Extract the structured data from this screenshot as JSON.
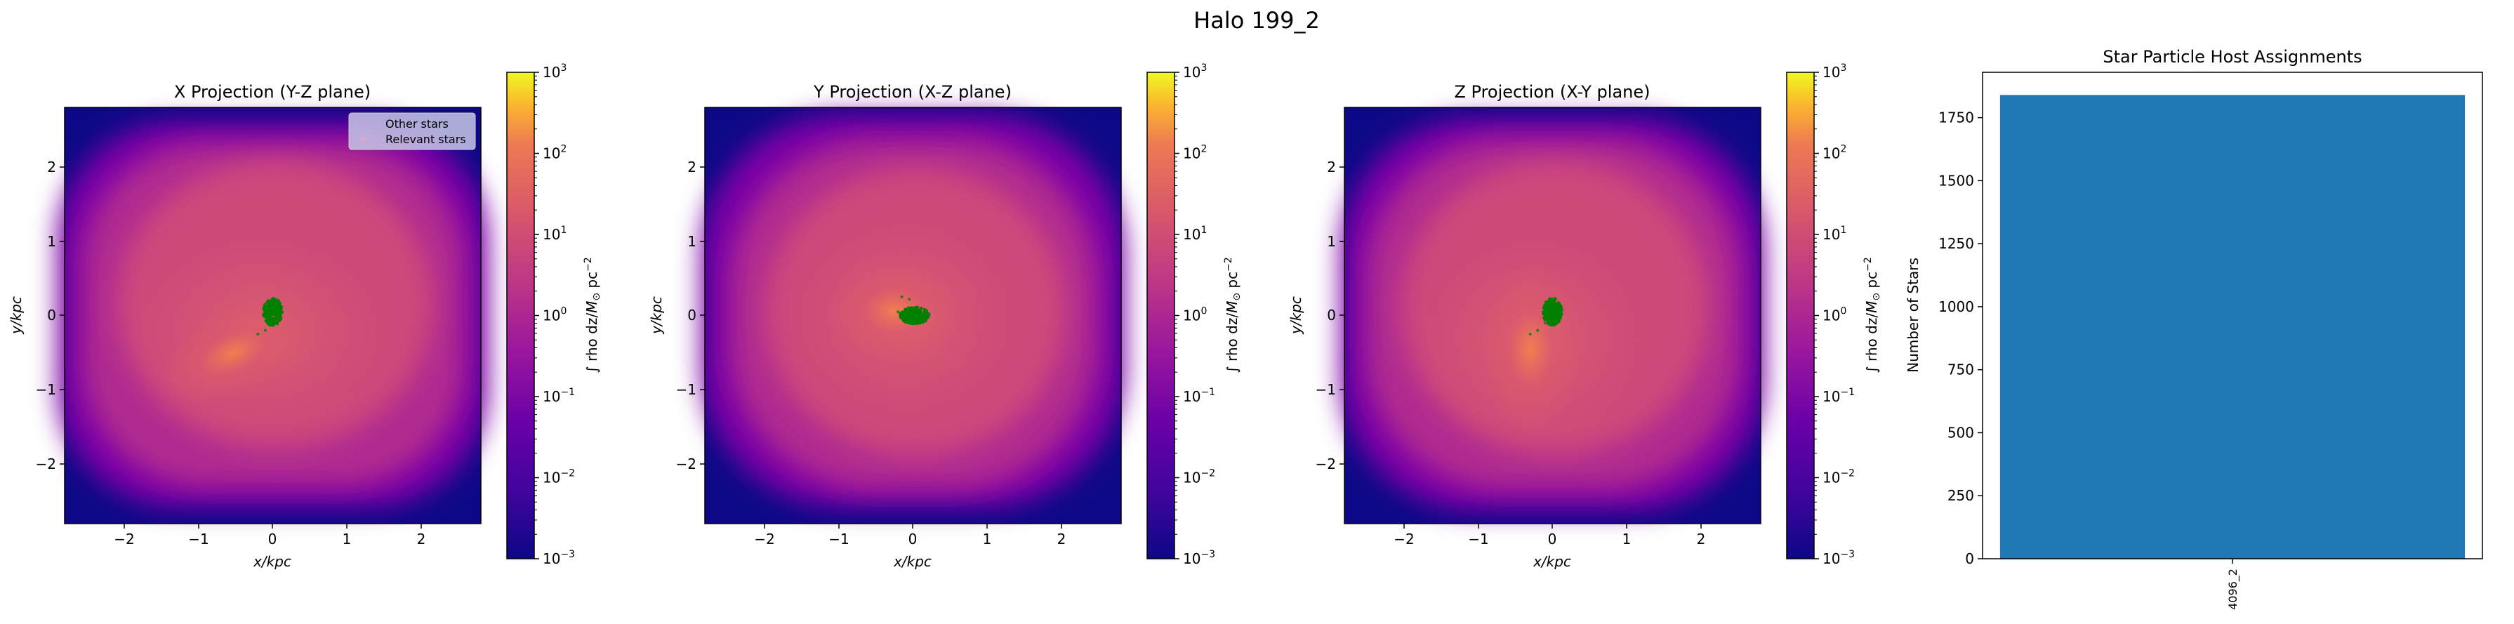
{
  "figure": {
    "title": "Halo 199_2"
  },
  "colors": {
    "stars_green": "#008000",
    "other_stars_pink": "#ff9f9f",
    "bar_blue": "#1f77b4",
    "legend_bg": "#c8c8e6",
    "colormap": "plasma"
  },
  "projections": [
    {
      "title": "X Projection (Y-Z plane)",
      "xlabel": "x/kpc",
      "ylabel": "y/kpc",
      "xticks": [
        "−2",
        "−1",
        "0",
        "1",
        "2"
      ],
      "yticks": [
        "2",
        "1",
        "0",
        "−1",
        "−2"
      ],
      "show_legend": true
    },
    {
      "title": "Y Projection (X-Z plane)",
      "xlabel": "x/kpc",
      "ylabel": "y/kpc",
      "xticks": [
        "−2",
        "−1",
        "0",
        "1",
        "2"
      ],
      "yticks": [
        "2",
        "1",
        "0",
        "−1",
        "−2"
      ],
      "show_legend": false
    },
    {
      "title": "Z Projection (X-Y plane)",
      "xlabel": "x/kpc",
      "ylabel": "y/kpc",
      "xticks": [
        "−2",
        "−1",
        "0",
        "1",
        "2"
      ],
      "yticks": [
        "2",
        "1",
        "0",
        "−1",
        "−2"
      ],
      "show_legend": false
    }
  ],
  "legend": {
    "other": "Other stars",
    "relevant": "Relevant stars"
  },
  "colorbar": {
    "label_prefix": "∫ rho dz/",
    "label_unit": "M",
    "label_sub": "⊙",
    "label_suffix": " pc",
    "label_sup": "−2",
    "tick_base": "10",
    "tick_exponents": [
      "3",
      "2",
      "1",
      "0",
      "−1",
      "−2",
      "−3"
    ]
  },
  "chart_data": [
    {
      "type": "heatmap",
      "title": "X Projection (Y-Z plane)",
      "xlabel": "x/kpc",
      "ylabel": "y/kpc",
      "xlim": [
        -2.8,
        2.8
      ],
      "ylim": [
        -2.8,
        2.8
      ],
      "color_scale": "log",
      "clim": [
        0.001,
        1000
      ],
      "stars_center": [
        0.0,
        0.05
      ],
      "stars_tail": [
        [
          -0.1,
          -0.2
        ],
        [
          -0.2,
          -0.25
        ],
        [
          -0.05,
          -0.12
        ]
      ]
    },
    {
      "type": "heatmap",
      "title": "Y Projection (X-Z plane)",
      "xlabel": "x/kpc",
      "ylabel": "y/kpc",
      "xlim": [
        -2.8,
        2.8
      ],
      "ylim": [
        -2.8,
        2.8
      ],
      "color_scale": "log",
      "clim": [
        0.001,
        1000
      ],
      "stars_center": [
        0.02,
        0.0
      ],
      "stars_tail": [
        [
          -0.15,
          0.25
        ],
        [
          -0.05,
          0.22
        ],
        [
          -0.2,
          0.05
        ]
      ]
    },
    {
      "type": "heatmap",
      "title": "Z Projection (X-Y plane)",
      "xlabel": "x/kpc",
      "ylabel": "y/kpc",
      "xlim": [
        -2.8,
        2.8
      ],
      "ylim": [
        -2.8,
        2.8
      ],
      "color_scale": "log",
      "clim": [
        0.001,
        1000
      ],
      "stars_center": [
        0.0,
        0.05
      ],
      "stars_tail": [
        [
          -0.2,
          -0.2
        ],
        [
          -0.3,
          -0.25
        ],
        [
          -0.1,
          -0.1
        ]
      ]
    },
    {
      "type": "bar",
      "title": "Star Particle Host Assignments",
      "xlabel": "",
      "ylabel": "Number of Stars",
      "categories": [
        "4096_2"
      ],
      "values": [
        1840
      ],
      "ylim": [
        0,
        1930
      ],
      "yticks": [
        0,
        250,
        500,
        750,
        1000,
        1250,
        1500,
        1750
      ]
    }
  ]
}
